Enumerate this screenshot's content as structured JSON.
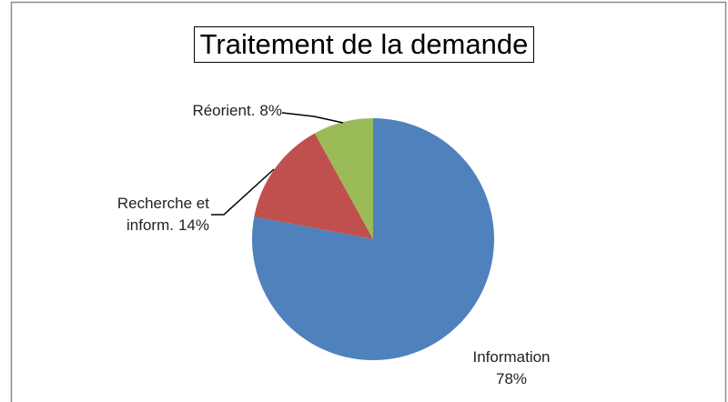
{
  "chart_data": {
    "type": "pie",
    "title": "Traitement de la demande",
    "categories": [
      "Information",
      "Recherche et inform.",
      "Réorient."
    ],
    "values": [
      78,
      14,
      8
    ],
    "value_labels": [
      "78%",
      "14%",
      "8%"
    ],
    "colors": [
      "#4f81bd",
      "#c0504d",
      "#9bbb59"
    ]
  }
}
